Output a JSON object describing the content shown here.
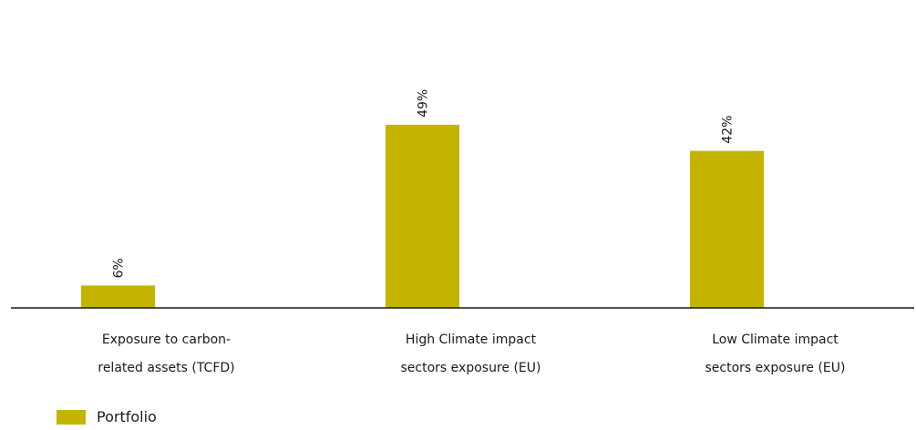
{
  "chart_data": {
    "type": "bar",
    "categories": [
      [
        "Exposure to carbon-",
        "related assets (TCFD)"
      ],
      [
        "High Climate impact",
        "sectors exposure (EU)"
      ],
      [
        "Low Climate impact",
        "sectors exposure (EU)"
      ]
    ],
    "series": [
      {
        "name": "Portfolio",
        "values": [
          6,
          49,
          42
        ],
        "labels": [
          "6%",
          "49%",
          "42%"
        ],
        "color": "#c4b400"
      }
    ],
    "ylim": [
      0,
      58
    ],
    "grid": false,
    "legend_position": "bottom-left",
    "value_label_orientation": "vertical"
  },
  "legend": {
    "label": "Portfolio",
    "color": "#c4b400"
  },
  "colors": {
    "bar": "#c4b400",
    "axis": "#1a1a1a"
  }
}
